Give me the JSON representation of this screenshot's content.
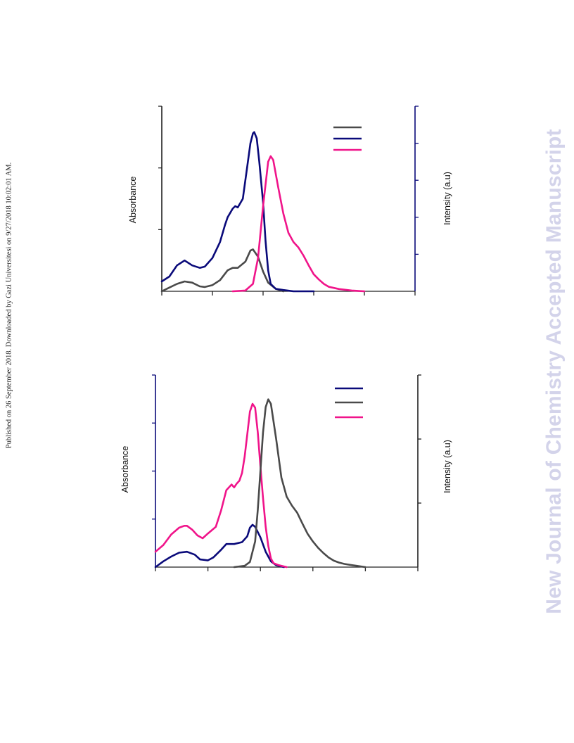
{
  "side_note": "Published on 26 September 2018. Downloaded by Gazi Universitesi on 9/27/2018 10:02:01 AM.",
  "watermark": "New Journal of Chemistry Accepted Manuscript",
  "colors": {
    "dark_gray": "#4a4a4a",
    "navy": "#0a0a7a",
    "magenta": "#f0148a",
    "left_axis": "#222222",
    "right_axis_top": "#0a0a7a",
    "left_axis_bottom": "#0a0a7a",
    "right_axis_bottom": "#222222"
  },
  "chart_data": [
    {
      "type": "line",
      "left_axis_label": "Absorbance",
      "right_axis_label": "Intensity (a.u)",
      "xlim": [
        0,
        100
      ],
      "ylim_left": [
        0,
        1.5
      ],
      "ylim_right": [
        0,
        5
      ],
      "x_ticks": [
        0,
        20,
        40,
        60,
        80,
        100
      ],
      "y_ticks_left": [
        0.5,
        1.0
      ],
      "y_ticks_right": [
        1,
        2,
        3,
        4
      ],
      "legend_position": "top-right",
      "legend_items": [
        {
          "color_key": "dark_gray"
        },
        {
          "color_key": "navy"
        },
        {
          "color_key": "magenta"
        }
      ],
      "series": [
        {
          "color_key": "dark_gray",
          "axis": "left",
          "points": [
            [
              0,
              0.0
            ],
            [
              3,
              0.03
            ],
            [
              6,
              0.06
            ],
            [
              9,
              0.08
            ],
            [
              12,
              0.07
            ],
            [
              15,
              0.04
            ],
            [
              17,
              0.035
            ],
            [
              20,
              0.05
            ],
            [
              23,
              0.09
            ],
            [
              26,
              0.17
            ],
            [
              28,
              0.19
            ],
            [
              30,
              0.19
            ],
            [
              33,
              0.24
            ],
            [
              35,
              0.33
            ],
            [
              36,
              0.34
            ],
            [
              38,
              0.28
            ],
            [
              40,
              0.16
            ],
            [
              42,
              0.07
            ],
            [
              45,
              0.02
            ],
            [
              48,
              0.0
            ]
          ]
        },
        {
          "color_key": "navy",
          "axis": "left",
          "points": [
            [
              0,
              0.08
            ],
            [
              3,
              0.12
            ],
            [
              6,
              0.21
            ],
            [
              9,
              0.25
            ],
            [
              12,
              0.21
            ],
            [
              15,
              0.19
            ],
            [
              17,
              0.2
            ],
            [
              20,
              0.27
            ],
            [
              23,
              0.4
            ],
            [
              25,
              0.54
            ],
            [
              26,
              0.6
            ],
            [
              28,
              0.67
            ],
            [
              29,
              0.69
            ],
            [
              30,
              0.68
            ],
            [
              32,
              0.75
            ],
            [
              33,
              0.9
            ],
            [
              34,
              1.05
            ],
            [
              35,
              1.2
            ],
            [
              36,
              1.28
            ],
            [
              36.5,
              1.29
            ],
            [
              37.5,
              1.24
            ],
            [
              38.5,
              1.05
            ],
            [
              40,
              0.72
            ],
            [
              41,
              0.4
            ],
            [
              42,
              0.17
            ],
            [
              43,
              0.06
            ],
            [
              45,
              0.02
            ],
            [
              48,
              0.01
            ],
            [
              52,
              0.0
            ],
            [
              60,
              0.0
            ]
          ]
        },
        {
          "color_key": "magenta",
          "axis": "right",
          "points": [
            [
              28,
              0.0
            ],
            [
              33,
              0.02
            ],
            [
              36,
              0.2
            ],
            [
              38,
              0.9
            ],
            [
              40,
              2.3
            ],
            [
              42,
              3.5
            ],
            [
              43,
              3.65
            ],
            [
              44,
              3.55
            ],
            [
              46,
              2.8
            ],
            [
              48,
              2.1
            ],
            [
              50,
              1.58
            ],
            [
              52,
              1.33
            ],
            [
              54,
              1.18
            ],
            [
              56,
              0.96
            ],
            [
              58,
              0.7
            ],
            [
              60,
              0.46
            ],
            [
              62,
              0.32
            ],
            [
              64,
              0.2
            ],
            [
              66,
              0.12
            ],
            [
              70,
              0.06
            ],
            [
              75,
              0.02
            ],
            [
              80,
              0.0
            ]
          ]
        }
      ]
    },
    {
      "type": "line",
      "left_axis_label": "Absorbance",
      "right_axis_label": "Intensity (a.u)",
      "xlim": [
        0,
        100
      ],
      "ylim_left": [
        0,
        2
      ],
      "ylim_right": [
        0,
        3
      ],
      "x_ticks": [
        0,
        20,
        40,
        60,
        80,
        100
      ],
      "y_ticks_left": [
        0.5,
        1.0,
        1.5
      ],
      "y_ticks_right": [
        1,
        2
      ],
      "legend_position": "top-right",
      "legend_items": [
        {
          "color_key": "navy"
        },
        {
          "color_key": "dark_gray"
        },
        {
          "color_key": "magenta"
        }
      ],
      "series": [
        {
          "color_key": "navy",
          "axis": "left",
          "points": [
            [
              0,
              0.0
            ],
            [
              3,
              0.06
            ],
            [
              6,
              0.11
            ],
            [
              9,
              0.15
            ],
            [
              12,
              0.16
            ],
            [
              15,
              0.13
            ],
            [
              17,
              0.08
            ],
            [
              20,
              0.07
            ],
            [
              22,
              0.1
            ],
            [
              25,
              0.18
            ],
            [
              27,
              0.24
            ],
            [
              30,
              0.24
            ],
            [
              33,
              0.26
            ],
            [
              35,
              0.32
            ],
            [
              36,
              0.41
            ],
            [
              37,
              0.44
            ],
            [
              38,
              0.42
            ],
            [
              40,
              0.31
            ],
            [
              42,
              0.16
            ],
            [
              44,
              0.06
            ],
            [
              46,
              0.02
            ],
            [
              49,
              0.0
            ]
          ]
        },
        {
          "color_key": "magenta",
          "axis": "left",
          "points": [
            [
              0,
              0.16
            ],
            [
              3,
              0.23
            ],
            [
              6,
              0.34
            ],
            [
              9,
              0.41
            ],
            [
              11,
              0.43
            ],
            [
              12,
              0.43
            ],
            [
              14,
              0.39
            ],
            [
              16,
              0.33
            ],
            [
              18,
              0.3
            ],
            [
              20,
              0.35
            ],
            [
              23,
              0.42
            ],
            [
              25,
              0.59
            ],
            [
              27,
              0.8
            ],
            [
              29,
              0.86
            ],
            [
              30,
              0.83
            ],
            [
              31,
              0.87
            ],
            [
              32,
              0.9
            ],
            [
              33,
              0.98
            ],
            [
              34,
              1.15
            ],
            [
              35,
              1.38
            ],
            [
              36,
              1.62
            ],
            [
              37,
              1.7
            ],
            [
              38,
              1.66
            ],
            [
              39,
              1.4
            ],
            [
              40,
              1.05
            ],
            [
              41,
              0.72
            ],
            [
              42,
              0.42
            ],
            [
              43,
              0.22
            ],
            [
              44,
              0.09
            ],
            [
              45,
              0.04
            ],
            [
              47,
              0.02
            ],
            [
              50,
              0.0
            ]
          ]
        },
        {
          "color_key": "dark_gray",
          "axis": "right",
          "points": [
            [
              30,
              0.0
            ],
            [
              34,
              0.02
            ],
            [
              36,
              0.08
            ],
            [
              38,
              0.4
            ],
            [
              39,
              0.9
            ],
            [
              40,
              1.5
            ],
            [
              41,
              2.1
            ],
            [
              42,
              2.5
            ],
            [
              43,
              2.62
            ],
            [
              44,
              2.55
            ],
            [
              46,
              2.0
            ],
            [
              48,
              1.4
            ],
            [
              50,
              1.1
            ],
            [
              52,
              0.96
            ],
            [
              54,
              0.85
            ],
            [
              56,
              0.68
            ],
            [
              58,
              0.52
            ],
            [
              60,
              0.4
            ],
            [
              62,
              0.3
            ],
            [
              64,
              0.22
            ],
            [
              66,
              0.15
            ],
            [
              68,
              0.1
            ],
            [
              70,
              0.07
            ],
            [
              72,
              0.05
            ],
            [
              75,
              0.03
            ],
            [
              80,
              0.0
            ]
          ]
        }
      ]
    }
  ]
}
